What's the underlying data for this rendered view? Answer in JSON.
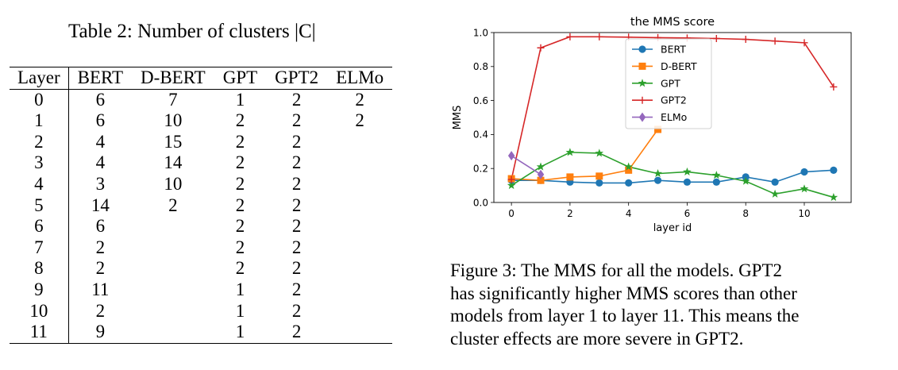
{
  "table": {
    "caption": "Table 2: Number of clusters |C|",
    "columns": [
      "Layer",
      "BERT",
      "D-BERT",
      "GPT",
      "GPT2",
      "ELMo"
    ],
    "rows": [
      [
        "0",
        "6",
        "7",
        "1",
        "2",
        "2"
      ],
      [
        "1",
        "6",
        "10",
        "2",
        "2",
        "2"
      ],
      [
        "2",
        "4",
        "15",
        "2",
        "2",
        ""
      ],
      [
        "3",
        "4",
        "14",
        "2",
        "2",
        ""
      ],
      [
        "4",
        "3",
        "10",
        "2",
        "2",
        ""
      ],
      [
        "5",
        "14",
        "2",
        "2",
        "2",
        ""
      ],
      [
        "6",
        "6",
        "",
        "2",
        "2",
        ""
      ],
      [
        "7",
        "2",
        "",
        "2",
        "2",
        ""
      ],
      [
        "8",
        "2",
        "",
        "2",
        "2",
        ""
      ],
      [
        "9",
        "11",
        "",
        "1",
        "2",
        ""
      ],
      [
        "10",
        "2",
        "",
        "1",
        "2",
        ""
      ],
      [
        "11",
        "9",
        "",
        "1",
        "2",
        ""
      ]
    ]
  },
  "figure": {
    "caption_lines": [
      "Figure 3: The MMS for all the models. GPT2",
      "has significantly higher MMS scores than other",
      "models from layer 1 to layer 11. This means the",
      "cluster effects are more severe in GPT2."
    ]
  },
  "chart_data": {
    "type": "line",
    "title": "the MMS score",
    "xlabel": "layer id",
    "ylabel": "MMS",
    "xlim": [
      -0.6,
      11.6
    ],
    "ylim": [
      0.0,
      1.0
    ],
    "xticks": [
      0,
      2,
      4,
      6,
      8,
      10
    ],
    "yticks": [
      0.0,
      0.2,
      0.4,
      0.6,
      0.8,
      1.0
    ],
    "xtick_labels": [
      "0",
      "2",
      "4",
      "6",
      "8",
      "10"
    ],
    "ytick_labels": [
      "0.0",
      "0.2",
      "0.4",
      "0.6",
      "0.8",
      "1.0"
    ],
    "grid": false,
    "legend_position": "upper-center",
    "series": [
      {
        "name": "BERT",
        "color": "#1f77b4",
        "marker": "circle",
        "x": [
          0,
          1,
          2,
          3,
          4,
          5,
          6,
          7,
          8,
          9,
          10,
          11
        ],
        "y": [
          0.13,
          0.13,
          0.12,
          0.115,
          0.115,
          0.13,
          0.12,
          0.12,
          0.15,
          0.12,
          0.18,
          0.19
        ]
      },
      {
        "name": "D-BERT",
        "color": "#ff7f0e",
        "marker": "square",
        "x": [
          0,
          1,
          2,
          3,
          4,
          5
        ],
        "y": [
          0.14,
          0.13,
          0.15,
          0.155,
          0.19,
          0.43
        ]
      },
      {
        "name": "GPT",
        "color": "#2ca02c",
        "marker": "star",
        "x": [
          0,
          1,
          2,
          3,
          4,
          5,
          6,
          7,
          8,
          9,
          10,
          11
        ],
        "y": [
          0.1,
          0.21,
          0.295,
          0.29,
          0.21,
          0.17,
          0.18,
          0.16,
          0.125,
          0.05,
          0.08,
          0.03
        ]
      },
      {
        "name": "GPT2",
        "color": "#d62728",
        "marker": "plus",
        "x": [
          0,
          1,
          2,
          3,
          4,
          5,
          6,
          7,
          8,
          9,
          10,
          11
        ],
        "y": [
          0.135,
          0.91,
          0.975,
          0.975,
          0.973,
          0.97,
          0.968,
          0.965,
          0.96,
          0.95,
          0.94,
          0.68
        ]
      },
      {
        "name": "ELMo",
        "color": "#9467bd",
        "marker": "diamond",
        "x": [
          0,
          1
        ],
        "y": [
          0.275,
          0.165
        ]
      }
    ]
  }
}
